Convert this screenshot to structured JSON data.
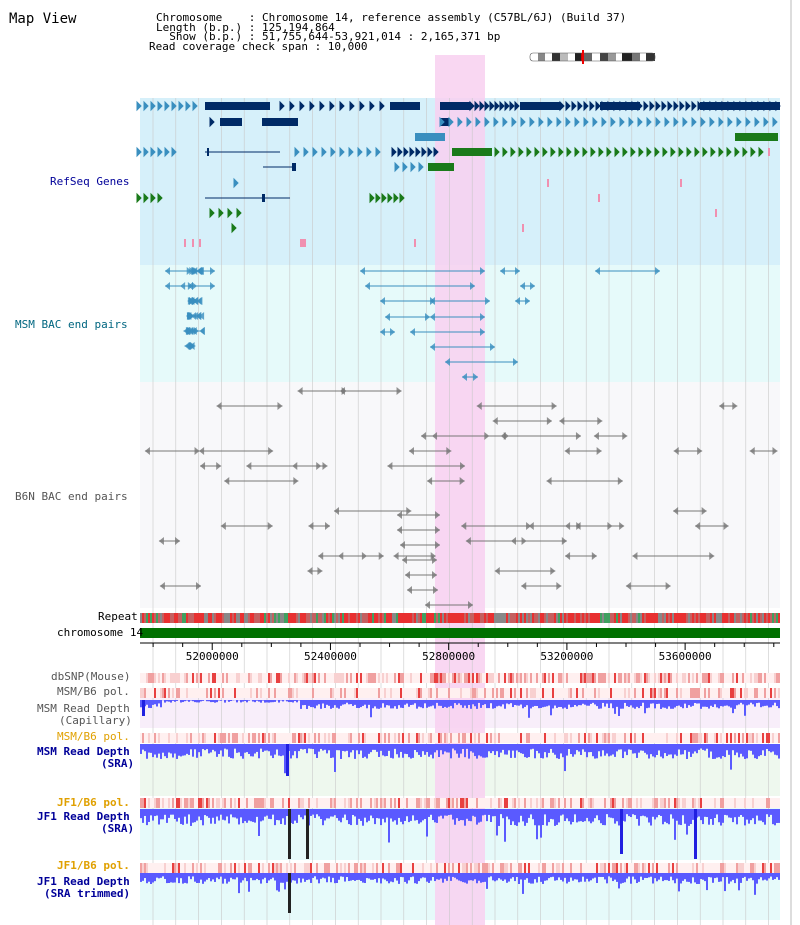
{
  "header": {
    "title": "Map View",
    "info_lines": [
      "Chromosome    : Chromosome 14, reference assembly (C57BL/6J) (Build 37)",
      "Length (b.p.) : 125,194,864",
      "  Show (b.p.) : 51,755,644-53,921,014 : 2,165,371 bp",
      "Read coverage check span : 10,000"
    ]
  },
  "tracks": {
    "refseq": "RefSeq Genes",
    "msm_bac": "MSM BAC end pairs",
    "b6n_bac": "B6N BAC end pairs",
    "repeat": "Repeat",
    "chromosome": "chromosome 14",
    "dbsnp": "dbSNP(Mouse)",
    "msm_b6_pol": "MSM/B6 pol.",
    "msm_depth_cap_1": "MSM Read Depth",
    "msm_depth_cap_2": "(Capillary)",
    "msm_b6_pol_2": "MSM/B6 pol.",
    "msm_depth_sra_1": "MSM Read Depth",
    "msm_depth_sra_2": "(SRA)",
    "jf1_b6_pol": "JF1/B6 pol.",
    "jf1_depth_sra_1": "JF1 Read Depth",
    "jf1_depth_sra_2": "(SRA)",
    "jf1_b6_pol_2": "JF1/B6 pol.",
    "jf1_depth_trim_1": "JF1 Read Depth",
    "jf1_depth_trim_2": "(SRA trimmed)"
  },
  "axis": {
    "ticks": [
      "52000000",
      "52400000",
      "52800000",
      "53200000",
      "53600000"
    ],
    "tick_values": [
      52000000,
      52400000,
      52800000,
      53200000,
      53600000
    ],
    "range": [
      51755644,
      53921014
    ]
  },
  "colors": {
    "refseq_bg": "#d6f0fa",
    "msm_bg": "#e6fafa",
    "b6n_bg": "#f8f8fa",
    "highlight": "#f8d0f0",
    "chromosome": "#007000",
    "gene_dark": "#002a66",
    "gene_mid": "#3a8fbf",
    "gene_green": "#1a7a1a",
    "gene_pink": "#f090b0",
    "depth_blue": "#5a5aff",
    "label_blue": "#000099",
    "label_teal": "#006680",
    "label_gray": "#555555",
    "label_orange": "#e0a000"
  }
}
